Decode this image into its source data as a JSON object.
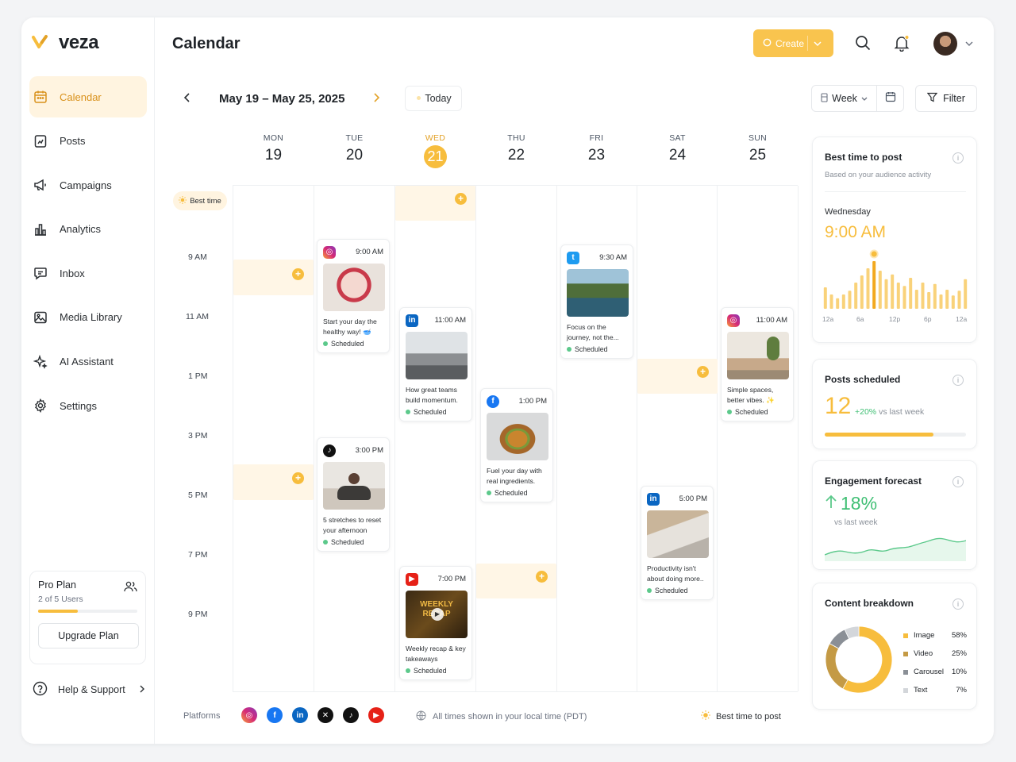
{
  "app": {
    "brand": "veza",
    "page_title": "Calendar"
  },
  "colors": {
    "accent": "#f7bd3d",
    "active_bg": "#fff4e0",
    "green": "#5cc98b"
  },
  "sidebar": {
    "items": [
      {
        "label": "Calendar",
        "icon": "calendar-icon",
        "active": true
      },
      {
        "label": "Posts",
        "icon": "posts-icon"
      },
      {
        "label": "Campaigns",
        "icon": "megaphone-icon"
      },
      {
        "label": "Analytics",
        "icon": "bar-chart-icon"
      },
      {
        "label": "Inbox",
        "icon": "chat-icon"
      },
      {
        "label": "Media Library",
        "icon": "image-icon"
      },
      {
        "label": "AI Assistant",
        "icon": "sparkles-icon"
      },
      {
        "label": "Settings",
        "icon": "gear-icon"
      }
    ],
    "plan": {
      "title": "Pro Plan",
      "users": "2 of 5 Users",
      "usage_fraction": 0.4,
      "upgrade_label": "Upgrade Plan"
    },
    "help_label": "Help & Support"
  },
  "header": {
    "create_label": "Create"
  },
  "toolbar": {
    "date_range": "May 19 – May 25, 2025",
    "today_label": "Today",
    "view_label": "Week",
    "filter_label": "Filter"
  },
  "days": [
    {
      "name": "MON",
      "date": "19"
    },
    {
      "name": "TUE",
      "date": "20"
    },
    {
      "name": "WED",
      "date": "21",
      "today": true
    },
    {
      "name": "THU",
      "date": "22"
    },
    {
      "name": "FRI",
      "date": "23"
    },
    {
      "name": "SAT",
      "date": "24"
    },
    {
      "name": "SUN",
      "date": "25"
    }
  ],
  "best_time_chip": "Best time",
  "time_labels": [
    "9 AM",
    "11 AM",
    "1 PM",
    "3 PM",
    "5 PM",
    "7 PM",
    "9 PM"
  ],
  "posts": [
    {
      "platform": "instagram",
      "time": "9:00 AM",
      "caption": "Start your day the healthy way! 🥣",
      "status": "Scheduled"
    },
    {
      "platform": "tiktok",
      "time": "3:00 PM",
      "caption": "5 stretches to reset your afternoon",
      "status": "Scheduled"
    },
    {
      "platform": "linkedin",
      "time": "11:00 AM",
      "caption": "How great teams build momentum.",
      "status": "Scheduled"
    },
    {
      "platform": "youtube",
      "time": "7:00 PM",
      "caption": "Weekly recap & key takeaways",
      "status": "Scheduled",
      "thumb_text": "WEEKLY RECAP"
    },
    {
      "platform": "facebook",
      "time": "1:00 PM",
      "caption": "Fuel your day with real ingredients.",
      "status": "Scheduled"
    },
    {
      "platform": "twitter",
      "time": "9:30 AM",
      "caption": "Focus on the journey, not the...",
      "status": "Scheduled"
    },
    {
      "platform": "linkedin",
      "time": "5:00 PM",
      "caption": "Productivity isn't about doing more..",
      "status": "Scheduled"
    },
    {
      "platform": "instagram",
      "time": "11:00 AM",
      "caption": "Simple spaces, better vibes. ✨",
      "status": "Scheduled"
    }
  ],
  "footer": {
    "platforms_label": "Platforms",
    "timezone_note": "All times shown in your local time (PDT)",
    "best_time_legend": "Best time to post"
  },
  "best_time_card": {
    "title": "Best time to post",
    "subtitle": "Based on your audience activity",
    "day": "Wednesday",
    "time": "9:00 AM",
    "axis_labels": [
      "12a",
      "6a",
      "12p",
      "6p",
      "12a"
    ],
    "hourly_activity": [
      0.45,
      0.3,
      0.22,
      0.3,
      0.38,
      0.55,
      0.7,
      0.85,
      1.0,
      0.8,
      0.62,
      0.72,
      0.55,
      0.48,
      0.65,
      0.4,
      0.55,
      0.35,
      0.52,
      0.3,
      0.4,
      0.28,
      0.38,
      0.62
    ]
  },
  "posts_scheduled_card": {
    "title": "Posts scheduled",
    "count": "12",
    "change": "+20%",
    "change_suffix": "vs last week",
    "progress_fraction": 0.77
  },
  "engagement_card": {
    "title": "Engagement forecast",
    "value": "18%",
    "suffix": "vs last week"
  },
  "content_breakdown_card": {
    "title": "Content breakdown",
    "items": [
      {
        "label": "Image",
        "value": "58%",
        "pct": 58,
        "color": "#f7bd3d"
      },
      {
        "label": "Video",
        "value": "25%",
        "pct": 25,
        "color": "#c49a45"
      },
      {
        "label": "Carousel",
        "value": "10%",
        "pct": 10,
        "color": "#8a8f96"
      },
      {
        "label": "Text",
        "value": "7%",
        "pct": 7,
        "color": "#d3d6da"
      }
    ]
  }
}
